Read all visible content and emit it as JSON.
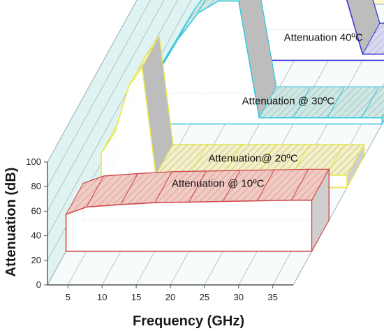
{
  "chart_data": {
    "type": "area",
    "view": "3d-waterfall",
    "xlabel": "Frequency (GHz)",
    "ylabel": "Attenuation (dB)",
    "xlim": [
      2,
      38
    ],
    "ylim": [
      0,
      100
    ],
    "x_ticks": [
      5,
      10,
      15,
      20,
      25,
      30,
      35
    ],
    "y_ticks": [
      0,
      20,
      40,
      60,
      80,
      100
    ],
    "grid": true,
    "fill_pattern": "diagonal-hatch",
    "series": [
      {
        "name": "Attenuation @ 10ºC",
        "color": "#d24a4a",
        "top_color": "#f3c9c2",
        "x": [
          2,
          5,
          10,
          15,
          20,
          25,
          30,
          35,
          38
        ],
        "values": [
          30,
          36,
          38,
          39.5,
          40,
          40.5,
          41,
          41.5,
          41.5
        ]
      },
      {
        "name": "Attenuation@ 20ºC",
        "color": "#e8e84a",
        "top_color": "#f2f0c4",
        "x": [
          2,
          4,
          6,
          8,
          10,
          15,
          20,
          25,
          30,
          35,
          38
        ],
        "values": [
          28,
          45,
          82,
          98,
          10,
          10,
          10,
          10,
          10,
          10,
          10
        ]
      },
      {
        "name": "Attenuation @ 30ºC",
        "color": "#38c8dc",
        "top_color": "#cde8e4",
        "x": [
          2,
          5,
          8,
          11,
          14,
          17,
          20,
          25,
          30,
          35,
          38
        ],
        "values": [
          12,
          40,
          68,
          90,
          100,
          100,
          5,
          5,
          5,
          5,
          5
        ]
      },
      {
        "name": "Attenuation 40ºC",
        "color": "#3a3ad6",
        "top_color": "#d8d8f2",
        "x": [
          2,
          5,
          10,
          15,
          20,
          25,
          30,
          35,
          38
        ],
        "values": [
          5,
          28,
          60,
          85,
          100,
          100,
          5,
          5,
          5
        ]
      }
    ],
    "colors": {
      "back_wall": "#fdf7cc",
      "side_wall": "#dff3f3",
      "grid": "#9fb0b0",
      "axis": "#555555"
    }
  }
}
